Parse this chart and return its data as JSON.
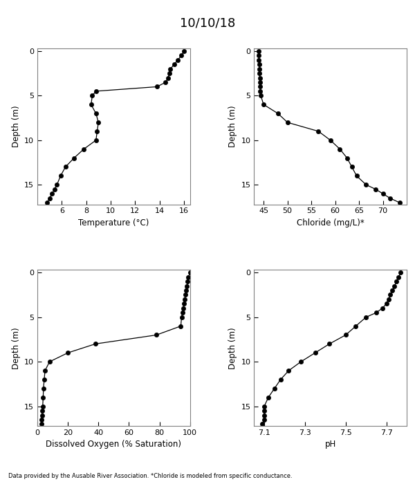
{
  "title": "10/10/18",
  "footnote": "Data provided by the Ausable River Association. *Chloride is modeled from specific conductance.",
  "depth": [
    0,
    0.5,
    1,
    1.5,
    2,
    2.5,
    3,
    3.5,
    4,
    4.5,
    5,
    6,
    7,
    8,
    9,
    10,
    11,
    12,
    13,
    14,
    15,
    15.5,
    16,
    16.5,
    17
  ],
  "temperature": [
    16.0,
    15.8,
    15.5,
    15.2,
    14.9,
    14.8,
    14.7,
    14.5,
    13.8,
    8.8,
    8.5,
    8.4,
    8.8,
    9.0,
    8.9,
    8.8,
    7.8,
    7.0,
    6.3,
    5.9,
    5.6,
    5.4,
    5.2,
    5.0,
    4.8
  ],
  "chloride": [
    44.0,
    44.0,
    44.0,
    44.1,
    44.1,
    44.1,
    44.2,
    44.2,
    44.3,
    44.3,
    44.4,
    45.0,
    48.0,
    50.0,
    56.5,
    59.0,
    61.0,
    62.5,
    63.5,
    64.5,
    66.5,
    68.5,
    70.0,
    71.5,
    73.5
  ],
  "do_sat": [
    100.0,
    99.0,
    98.5,
    98.0,
    97.5,
    97.0,
    96.5,
    96.0,
    95.5,
    95.0,
    94.5,
    94.0,
    78.0,
    38.0,
    20.0,
    8.0,
    5.0,
    4.5,
    4.0,
    3.8,
    3.5,
    3.2,
    3.0,
    2.8,
    2.5
  ],
  "ph": [
    7.77,
    7.76,
    7.75,
    7.74,
    7.73,
    7.72,
    7.71,
    7.7,
    7.68,
    7.65,
    7.6,
    7.55,
    7.5,
    7.42,
    7.35,
    7.28,
    7.22,
    7.18,
    7.15,
    7.12,
    7.1,
    7.1,
    7.1,
    7.1,
    7.09
  ],
  "temp_xlim": [
    4.0,
    16.5
  ],
  "temp_xticks": [
    6,
    8,
    10,
    12,
    14,
    16
  ],
  "chloride_xlim": [
    43.0,
    75.0
  ],
  "chloride_xticks": [
    45,
    50,
    55,
    60,
    65,
    70
  ],
  "do_xlim": [
    0,
    100
  ],
  "do_xticks": [
    0,
    20,
    40,
    60,
    80,
    100
  ],
  "ph_xlim": [
    7.05,
    7.8
  ],
  "ph_xticks": [
    7.1,
    7.3,
    7.5,
    7.7
  ],
  "depth_ylim": [
    17.2,
    -0.3
  ],
  "depth_yticks": [
    0,
    5,
    10,
    15
  ],
  "ylabel": "Depth (m)",
  "xlabel_temp": "Temperature (°C)",
  "xlabel_chloride": "Chloride (mg/L)*",
  "xlabel_do": "Dissolved Oxygen (% Saturation)",
  "xlabel_ph": "pH"
}
